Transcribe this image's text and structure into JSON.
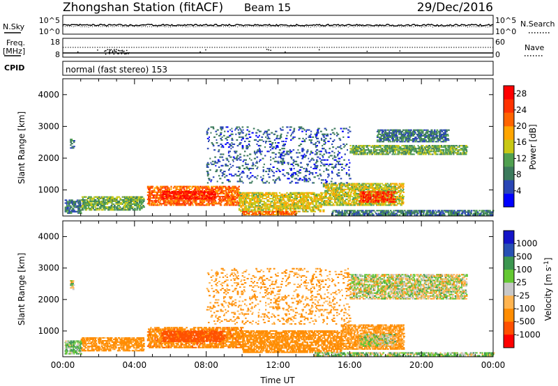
{
  "header": {
    "station": "Zhongshan Station (fitACF)",
    "beam": "Beam 15",
    "date": "29/Dec/2016",
    "cpid_label": "CPID",
    "cpid_text": "normal (fast stereo) 153",
    "nsky_label": "N.Sky",
    "nsky_top": "10^5",
    "nsky_bottom": "10^0",
    "nsearch_label": "N.Search",
    "nsearch_top": "10^5",
    "nsearch_bottom": "10^0",
    "freq_label_1": "Freq.",
    "freq_label_2": "[MHz]",
    "freq_top": "18",
    "freq_bottom": "8",
    "nave_label": "Nave",
    "nave_top": "60",
    "nave_bottom": "0"
  },
  "colors": {
    "power_scale": [
      "#0000ff",
      "#2a46b4",
      "#3c7a5c",
      "#50a050",
      "#c8c814",
      "#ffa500",
      "#ff6400",
      "#ff3200",
      "#ff0000"
    ],
    "velocity_scale": [
      "#ff0000",
      "#ff5000",
      "#ff8c00",
      "#ffb450",
      "#c8c8c8",
      "#64c832",
      "#3c9650",
      "#2850b4",
      "#1414c8"
    ]
  },
  "chart_data": [
    {
      "type": "heatmap",
      "panel": "power",
      "ylabel": "Slant Range [km]",
      "ylim": [
        180,
        4500
      ],
      "yticks": [
        "1000",
        "2000",
        "3000",
        "4000"
      ],
      "yticks_values": [
        1000,
        2000,
        3000,
        4000
      ],
      "colorbar_label": "Power [dB]",
      "colorbar_ticks": [
        "4",
        "8",
        "12",
        "16",
        "20",
        "24",
        "28"
      ],
      "colorbar_range": [
        0,
        30
      ],
      "x_hours": [
        0,
        24
      ],
      "regions": [
        {
          "t": [
            4.7,
            9.8
          ],
          "r": [
            500,
            1100
          ],
          "v": 22
        },
        {
          "t": [
            5.5,
            8.5
          ],
          "r": [
            700,
            950
          ],
          "v": 27
        },
        {
          "t": [
            1.0,
            4.5
          ],
          "r": [
            350,
            800
          ],
          "v": 12
        },
        {
          "t": [
            0.1,
            1.0
          ],
          "r": [
            250,
            700
          ],
          "v": 8
        },
        {
          "t": [
            9.8,
            14.5
          ],
          "r": [
            300,
            900
          ],
          "v": 16
        },
        {
          "t": [
            14.5,
            19.0
          ],
          "r": [
            500,
            1200
          ],
          "v": 15
        },
        {
          "t": [
            16.5,
            18.5
          ],
          "r": [
            600,
            950
          ],
          "v": 25
        },
        {
          "t": [
            16.0,
            22.5
          ],
          "r": [
            2100,
            2400
          ],
          "v": 12
        },
        {
          "t": [
            17.5,
            21.5
          ],
          "r": [
            2500,
            2900
          ],
          "v": 8
        },
        {
          "t": [
            8.0,
            16.0
          ],
          "r": [
            1200,
            3000
          ],
          "v": 6
        },
        {
          "t": [
            10.0,
            13.0
          ],
          "r": [
            200,
            330
          ],
          "v": 22
        },
        {
          "t": [
            15.0,
            24.0
          ],
          "r": [
            190,
            330
          ],
          "v": 8
        },
        {
          "t": [
            0.4,
            0.6
          ],
          "r": [
            2300,
            2600
          ],
          "v": 8
        }
      ]
    },
    {
      "type": "heatmap",
      "panel": "velocity",
      "ylabel": "Slant Range [km]",
      "xlabel": "Time UT",
      "ylim": [
        180,
        4500
      ],
      "yticks": [
        "1000",
        "2000",
        "3000",
        "4000"
      ],
      "yticks_values": [
        1000,
        2000,
        3000,
        4000
      ],
      "xticks": [
        "00:00",
        "04:00",
        "08:00",
        "12:00",
        "16:00",
        "20:00",
        "00:00"
      ],
      "xticks_values": [
        0,
        4,
        8,
        12,
        16,
        20,
        24
      ],
      "colorbar_label": "Velocity [m s^-1]",
      "colorbar_ticks": [
        "1000",
        "500",
        "100",
        "25",
        "-25",
        "-100",
        "-500",
        "-1000"
      ],
      "x_hours": [
        0,
        24
      ],
      "regions": [
        {
          "t": [
            4.7,
            10.0
          ],
          "r": [
            450,
            1100
          ],
          "v": -400
        },
        {
          "t": [
            5.5,
            9.0
          ],
          "r": [
            650,
            1000
          ],
          "v": -700
        },
        {
          "t": [
            1.0,
            4.5
          ],
          "r": [
            350,
            800
          ],
          "v": -200
        },
        {
          "t": [
            0.1,
            1.0
          ],
          "r": [
            250,
            700
          ],
          "v": 80
        },
        {
          "t": [
            10.0,
            15.5
          ],
          "r": [
            300,
            1000
          ],
          "v": -300
        },
        {
          "t": [
            15.5,
            19.0
          ],
          "r": [
            400,
            1200
          ],
          "v": -150
        },
        {
          "t": [
            16.5,
            18.5
          ],
          "r": [
            500,
            900
          ],
          "v": 10
        },
        {
          "t": [
            16.0,
            22.5
          ],
          "r": [
            2000,
            2800
          ],
          "v": 0
        },
        {
          "t": [
            8.0,
            16.0
          ],
          "r": [
            1200,
            3000
          ],
          "v": -150
        },
        {
          "t": [
            14.0,
            24.0
          ],
          "r": [
            190,
            300
          ],
          "v": 60
        },
        {
          "t": [
            0.4,
            0.6
          ],
          "r": [
            2300,
            2600
          ],
          "v": 0
        }
      ]
    }
  ]
}
